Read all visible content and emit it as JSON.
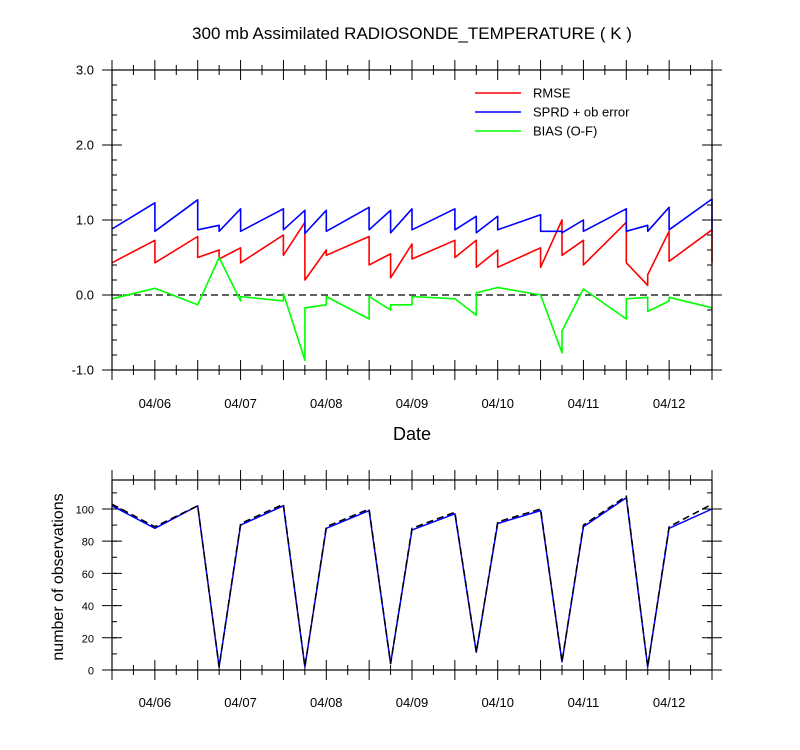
{
  "chart_data": [
    {
      "type": "line",
      "title": "300 mb Assimilated RADIOSONDE_TEMPERATURE ( K )",
      "xlabel": "Date",
      "ylabel": "",
      "xlim": [
        0,
        84
      ],
      "x_unit": "hours since 2011-04-05 12:00 UTC",
      "ylim": [
        -1.0,
        3.0
      ],
      "y_ticks": [
        -1.0,
        0.0,
        1.0,
        2.0,
        3.0
      ],
      "y_tick_labels": [
        "-1.0",
        "0.0",
        "1.0",
        "2.0",
        "3.0"
      ],
      "x_tick_labels": [
        {
          "x": 6,
          "label": "04/06"
        },
        {
          "x": 18,
          "label": "04/07"
        },
        {
          "x": 30,
          "label": "04/08"
        },
        {
          "x": 42,
          "label": "04/09"
        },
        {
          "x": 54,
          "label": "04/10"
        },
        {
          "x": 66,
          "label": "04/11"
        },
        {
          "x": 78,
          "label": "04/12"
        }
      ],
      "legend_position": "top-right",
      "reference_line": {
        "y": 0.0,
        "style": "dashed",
        "color": "#000000"
      },
      "series": [
        {
          "name": "RMSE",
          "color": "#ff0000",
          "segments": [
            [
              [
                0,
                0.43
              ],
              [
                6,
                0.73
              ],
              [
                6,
                0.43
              ],
              [
                12,
                0.78
              ],
              [
                12,
                0.5
              ],
              [
                15,
                0.6
              ],
              [
                15,
                0.48
              ],
              [
                18,
                0.63
              ],
              [
                18,
                0.43
              ],
              [
                24,
                0.8
              ],
              [
                24,
                0.53
              ],
              [
                27,
                0.97
              ],
              [
                27,
                0.2
              ],
              [
                30,
                0.6
              ],
              [
                30,
                0.53
              ],
              [
                36,
                0.78
              ],
              [
                36,
                0.4
              ],
              [
                39,
                0.55
              ],
              [
                39,
                0.23
              ],
              [
                42,
                0.68
              ],
              [
                42,
                0.48
              ],
              [
                48,
                0.73
              ],
              [
                48,
                0.5
              ],
              [
                51,
                0.73
              ],
              [
                51,
                0.37
              ],
              [
                54,
                0.6
              ],
              [
                54,
                0.37
              ],
              [
                60,
                0.63
              ],
              [
                60,
                0.37
              ],
              [
                63,
                1.0
              ],
              [
                63,
                0.53
              ],
              [
                66,
                0.73
              ],
              [
                66,
                0.4
              ],
              [
                72,
                0.97
              ],
              [
                72,
                0.43
              ],
              [
                75,
                0.13
              ],
              [
                75,
                0.27
              ],
              [
                78,
                0.85
              ],
              [
                78,
                0.45
              ],
              [
                84,
                0.87
              ],
              [
                84,
                0.43
              ]
            ]
          ]
        },
        {
          "name": "SPRD + ob error",
          "color": "#0000ff",
          "segments": [
            [
              [
                0,
                0.88
              ],
              [
                6,
                1.23
              ],
              [
                6,
                0.85
              ],
              [
                12,
                1.27
              ],
              [
                12,
                0.87
              ],
              [
                15,
                0.93
              ],
              [
                15,
                0.85
              ],
              [
                18,
                1.15
              ],
              [
                18,
                0.85
              ],
              [
                24,
                1.15
              ],
              [
                24,
                0.87
              ],
              [
                27,
                1.13
              ],
              [
                27,
                0.82
              ],
              [
                30,
                1.13
              ],
              [
                30,
                0.85
              ],
              [
                36,
                1.17
              ],
              [
                36,
                0.87
              ],
              [
                39,
                1.13
              ],
              [
                39,
                0.83
              ],
              [
                42,
                1.15
              ],
              [
                42,
                0.87
              ],
              [
                48,
                1.15
              ],
              [
                48,
                0.87
              ],
              [
                51,
                1.05
              ],
              [
                51,
                0.83
              ],
              [
                54,
                1.05
              ],
              [
                54,
                0.87
              ],
              [
                60,
                1.07
              ],
              [
                60,
                0.85
              ],
              [
                63,
                0.85
              ],
              [
                63,
                0.83
              ],
              [
                66,
                1.0
              ],
              [
                66,
                0.85
              ],
              [
                72,
                1.15
              ],
              [
                72,
                0.85
              ],
              [
                75,
                0.93
              ],
              [
                75,
                0.85
              ],
              [
                78,
                1.17
              ],
              [
                78,
                0.87
              ],
              [
                84,
                1.28
              ],
              [
                84,
                0.85
              ]
            ]
          ]
        },
        {
          "name": "BIAS (O-F)",
          "color": "#00ff00",
          "segments": [
            [
              [
                0,
                -0.05
              ],
              [
                6,
                0.09
              ],
              [
                12,
                -0.13
              ],
              [
                15,
                0.5
              ],
              [
                18,
                -0.08
              ],
              [
                18,
                -0.02
              ],
              [
                24,
                -0.08
              ],
              [
                24,
                0.02
              ],
              [
                27,
                -0.87
              ],
              [
                27,
                -0.17
              ],
              [
                30,
                -0.13
              ],
              [
                30,
                -0.02
              ],
              [
                36,
                -0.32
              ],
              [
                36,
                -0.02
              ],
              [
                39,
                -0.2
              ],
              [
                39,
                -0.13
              ],
              [
                42,
                -0.13
              ],
              [
                42,
                -0.02
              ],
              [
                48,
                -0.05
              ],
              [
                51,
                -0.27
              ],
              [
                51,
                0.03
              ],
              [
                54,
                0.1
              ],
              [
                60,
                0.0
              ],
              [
                63,
                -0.77
              ],
              [
                63,
                -0.48
              ],
              [
                66,
                0.08
              ],
              [
                72,
                -0.32
              ],
              [
                72,
                -0.05
              ],
              [
                75,
                -0.03
              ],
              [
                75,
                -0.22
              ],
              [
                78,
                -0.08
              ],
              [
                78,
                -0.03
              ],
              [
                84,
                -0.17
              ]
            ]
          ]
        }
      ]
    },
    {
      "type": "line",
      "title": "",
      "xlabel": "",
      "ylabel": "number of observations",
      "xlim": [
        0,
        84
      ],
      "x_unit": "hours since 2011-04-05 12:00 UTC",
      "ylim": [
        0,
        118
      ],
      "y_ticks": [
        0,
        20,
        40,
        60,
        80,
        100
      ],
      "y_tick_labels": [
        "0",
        "20",
        "40",
        "60",
        "80",
        "100"
      ],
      "x_tick_labels": [
        {
          "x": 6,
          "label": "04/06"
        },
        {
          "x": 18,
          "label": "04/07"
        },
        {
          "x": 30,
          "label": "04/08"
        },
        {
          "x": 42,
          "label": "04/09"
        },
        {
          "x": 54,
          "label": "04/10"
        },
        {
          "x": 66,
          "label": "04/11"
        },
        {
          "x": 78,
          "label": "04/12"
        }
      ],
      "series": [
        {
          "color": "#0000ff",
          "style": "solid",
          "points": [
            [
              0,
              102
            ],
            [
              6,
              88
            ],
            [
              12,
              102
            ],
            [
              15,
              2
            ],
            [
              18,
              90
            ],
            [
              24,
              102
            ],
            [
              27,
              2
            ],
            [
              30,
              88
            ],
            [
              36,
              99
            ],
            [
              39,
              4
            ],
            [
              42,
              87
            ],
            [
              48,
              97
            ],
            [
              51,
              11
            ],
            [
              54,
              91
            ],
            [
              60,
              99
            ],
            [
              63,
              5
            ],
            [
              66,
              89
            ],
            [
              72,
              107
            ],
            [
              75,
              2
            ],
            [
              78,
              88
            ],
            [
              84,
              100
            ]
          ]
        },
        {
          "color": "#000000",
          "style": "dashed",
          "points": [
            [
              0,
              103
            ],
            [
              6,
              89
            ],
            [
              12,
              102
            ],
            [
              15,
              2
            ],
            [
              18,
              91
            ],
            [
              24,
              103
            ],
            [
              27,
              2
            ],
            [
              30,
              89
            ],
            [
              36,
              100
            ],
            [
              39,
              4
            ],
            [
              42,
              88
            ],
            [
              48,
              98
            ],
            [
              51,
              11
            ],
            [
              54,
              92
            ],
            [
              60,
              100
            ],
            [
              63,
              5
            ],
            [
              66,
              90
            ],
            [
              72,
              108
            ],
            [
              75,
              2
            ],
            [
              78,
              89
            ],
            [
              84,
              103
            ]
          ]
        }
      ]
    }
  ]
}
